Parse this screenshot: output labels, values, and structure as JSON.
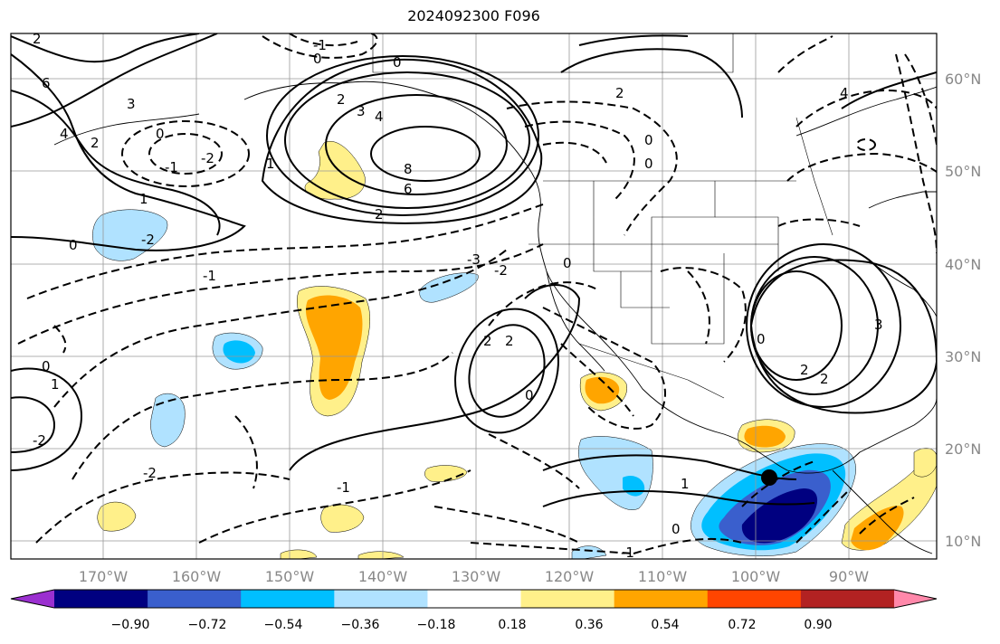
{
  "title": "2024092300 F096",
  "map": {
    "lon_labels": [
      "170°W",
      "160°W",
      "150°W",
      "140°W",
      "130°W",
      "120°W",
      "110°W",
      "100°W",
      "90°W"
    ],
    "lat_labels": [
      "60°N",
      "50°N",
      "40°N",
      "30°N",
      "20°N",
      "10°N"
    ],
    "contour_labels": [
      "6",
      "4",
      "3",
      "2",
      "2",
      "0",
      "0",
      "-1",
      "-2",
      "-1",
      "1",
      "0",
      "-2",
      "2",
      "3",
      "4",
      "8",
      "6",
      "2",
      "1",
      "2",
      "0",
      "0",
      "4",
      "0",
      "-3",
      "-2",
      "-1",
      "0",
      "2",
      "2",
      "0",
      "1",
      "-2",
      "-1",
      "1",
      "0",
      "-2",
      "0",
      "2",
      "2",
      "3",
      "0",
      "-1"
    ],
    "marker": "storm-center"
  },
  "colorbar": {
    "colors": [
      "#9b30d0",
      "#000080",
      "#3a5fcd",
      "#00bfff",
      "#b0e2ff",
      "#ffffff",
      "#fff08a",
      "#ffa500",
      "#ff4500",
      "#b22222",
      "#ff88aa"
    ],
    "ticks": [
      "−0.90",
      "−0.72",
      "−0.54",
      "−0.36",
      "−0.18",
      "0.18",
      "0.36",
      "0.54",
      "0.72",
      "0.90"
    ]
  }
}
